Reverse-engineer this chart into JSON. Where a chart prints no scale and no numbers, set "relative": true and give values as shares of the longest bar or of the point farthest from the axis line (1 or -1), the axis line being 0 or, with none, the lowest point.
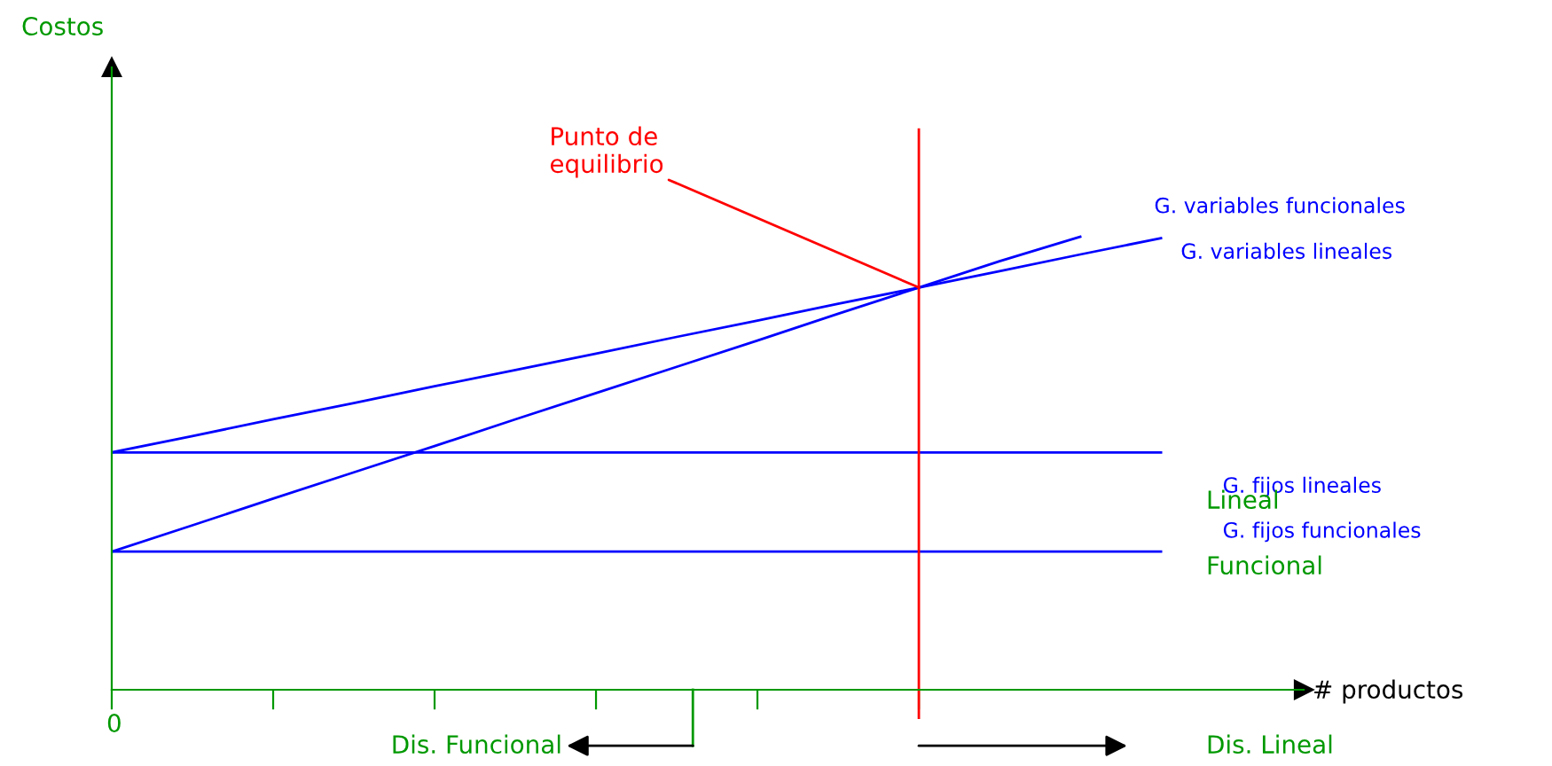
{
  "chart_data": {
    "type": "line",
    "relative": true,
    "xlabel": "# productos",
    "categories": [
      null,
      null,
      null,
      null,
      null,
      null,
      null,
      null,
      null,
      null,
      null,
      null,
      null,
      null
    ],
    "series": [
      {
        "name": "G. variables funcionales",
        "color": "#0000ff",
        "values": [
          0.305,
          0.363,
          0.422,
          0.48,
          0.538,
          0.597,
          0.655,
          0.713,
          0.771,
          0.83,
          0.888,
          0.946,
          1.0,
          null
        ]
      },
      {
        "name": "G. variables lineales",
        "color": "#0000ff",
        "values": [
          0.524,
          0.56,
          0.597,
          0.633,
          0.67,
          0.706,
          0.742,
          0.779,
          0.815,
          0.852,
          0.888,
          0.924,
          0.961,
          0.997
        ]
      },
      {
        "name": "G. fijos lineales",
        "color": "#0000ff",
        "values": [
          0.524,
          0.524,
          0.524,
          0.524,
          0.524,
          0.524,
          0.524,
          0.524,
          0.524,
          0.524,
          0.524,
          0.524,
          0.524,
          0.524
        ]
      },
      {
        "name": "G. fijos funcionales",
        "color": "#0000ff",
        "values": [
          0.305,
          0.305,
          0.305,
          0.305,
          0.305,
          0.305,
          0.305,
          0.305,
          0.305,
          0.305,
          0.305,
          0.305,
          0.305,
          0.305
        ]
      }
    ],
    "ref_lines": [
      {
        "axis": "x",
        "color": "#ff0000"
      }
    ],
    "annotations": [
      "Punto de\nequilibrio",
      "Lineal",
      "Funcional",
      "Dis. Funcional",
      "Dis. Lineal",
      "0",
      "Costos"
    ],
    "grid": false
  }
}
